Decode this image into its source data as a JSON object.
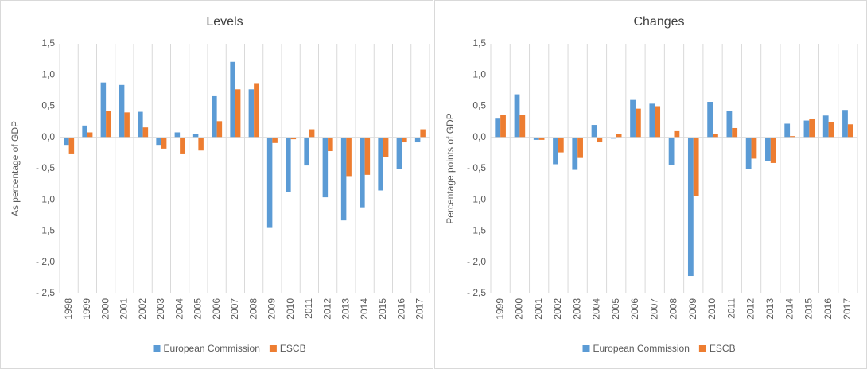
{
  "chart_data": [
    {
      "type": "bar",
      "title": "Levels",
      "y_label": "As percentage of GDP",
      "categories": [
        "1998",
        "1999",
        "2000",
        "2001",
        "2002",
        "2003",
        "2004",
        "2005",
        "2006",
        "2007",
        "2008",
        "2009",
        "2010",
        "2011",
        "2012",
        "2013",
        "2014",
        "2015",
        "2016",
        "2017"
      ],
      "series": [
        {
          "name": "European Commission",
          "color": "#5b9bd5",
          "values": [
            -0.12,
            0.19,
            0.88,
            0.84,
            0.41,
            -0.12,
            0.08,
            0.06,
            0.66,
            1.21,
            0.77,
            -1.45,
            -0.88,
            -0.45,
            -0.96,
            -1.33,
            -1.12,
            -0.85,
            -0.5,
            -0.08
          ]
        },
        {
          "name": "ESCB",
          "color": "#ed7d31",
          "values": [
            -0.27,
            0.08,
            0.42,
            0.4,
            0.16,
            -0.18,
            -0.27,
            -0.21,
            0.26,
            0.77,
            0.87,
            -0.09,
            -0.03,
            0.13,
            -0.22,
            -0.62,
            -0.6,
            -0.32,
            -0.08,
            0.13
          ]
        }
      ],
      "ylim": [
        -2.5,
        1.5
      ],
      "yticks": [
        {
          "value": 1.5,
          "label": "1,5"
        },
        {
          "value": 1,
          "label": "1,0"
        },
        {
          "value": 0.5,
          "label": "0,5"
        },
        {
          "value": 0,
          "label": "0,0"
        },
        {
          "value": -0.5,
          "label": "- 0,5"
        },
        {
          "value": -1,
          "label": "- 1,0"
        },
        {
          "value": -1.5,
          "label": "- 1,5"
        },
        {
          "value": -2,
          "label": "- 2,0"
        },
        {
          "value": -2.5,
          "label": "- 2,5"
        }
      ],
      "legend": "bottom"
    },
    {
      "type": "bar",
      "title": "Changes",
      "y_label": "Percentage points of GDP",
      "categories": [
        "1999",
        "2000",
        "2001",
        "2002",
        "2003",
        "2004",
        "2005",
        "2006",
        "2007",
        "2008",
        "2009",
        "2010",
        "2011",
        "2012",
        "2013",
        "2014",
        "2015",
        "2016",
        "2017"
      ],
      "series": [
        {
          "name": "European Commission",
          "color": "#5b9bd5",
          "values": [
            0.3,
            0.69,
            -0.04,
            -0.43,
            -0.52,
            0.2,
            -0.02,
            0.6,
            0.54,
            -0.44,
            -2.22,
            0.57,
            0.43,
            -0.5,
            -0.38,
            0.22,
            0.27,
            0.35,
            0.44
          ]
        },
        {
          "name": "ESCB",
          "color": "#ed7d31",
          "values": [
            0.36,
            0.36,
            -0.04,
            -0.24,
            -0.33,
            -0.08,
            0.06,
            0.46,
            0.5,
            0.1,
            -0.94,
            0.06,
            0.15,
            -0.34,
            -0.41,
            0.02,
            0.29,
            0.25,
            0.21
          ]
        }
      ],
      "ylim": [
        -2.5,
        1.5
      ],
      "yticks": [
        {
          "value": 1.5,
          "label": "1,5"
        },
        {
          "value": 1,
          "label": "1,0"
        },
        {
          "value": 0.5,
          "label": "0,5"
        },
        {
          "value": 0,
          "label": "0,0"
        },
        {
          "value": -0.5,
          "label": "- 0,5"
        },
        {
          "value": -1,
          "label": "- 1,0"
        },
        {
          "value": -1.5,
          "label": "- 1,5"
        },
        {
          "value": -2,
          "label": "- 2,0"
        },
        {
          "value": -2.5,
          "label": "- 2,5"
        }
      ],
      "legend": "bottom"
    }
  ]
}
